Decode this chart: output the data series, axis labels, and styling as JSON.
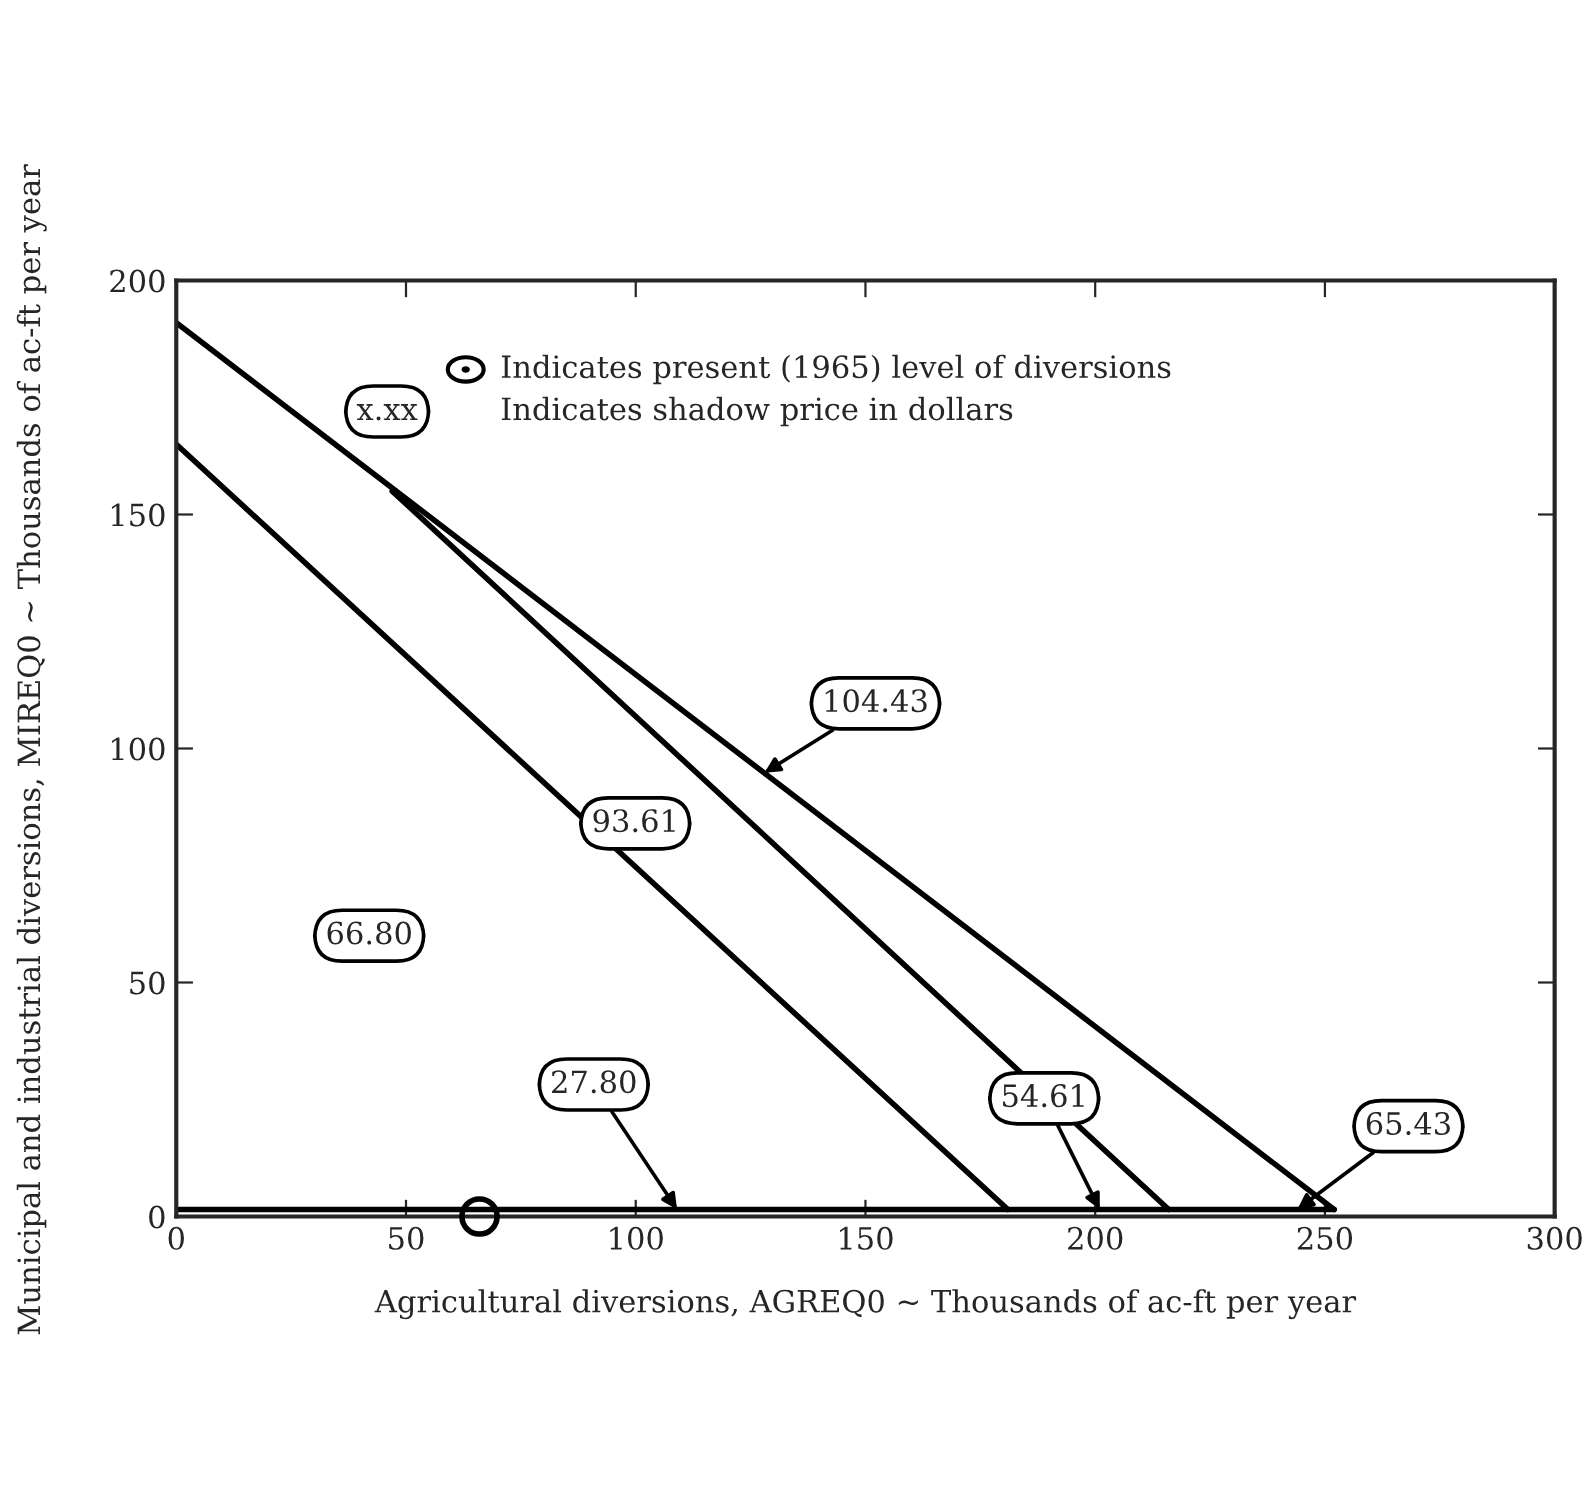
{
  "chart_data": {
    "type": "line",
    "xlabel": "Agricultural diversions, AGREQ0 ~ Thousands of ac-ft per year",
    "ylabel": "Municipal and industrial diversions, MIREQ0 ~ Thousands of ac-ft per year",
    "xlim": [
      0,
      300
    ],
    "xticks": [
      0,
      50,
      100,
      150,
      200,
      250,
      300
    ],
    "ylim": [
      0,
      200
    ],
    "yticks": [
      0,
      50,
      100,
      150,
      200
    ],
    "grid": false,
    "legend": false,
    "marker": "none",
    "line_style": "solid",
    "series": [
      {
        "color": "#000000",
        "x": [
          0,
          181
        ],
        "values": [
          165,
          1.5
        ]
      },
      {
        "color": "#000000",
        "x": [
          0,
          252
        ],
        "values": [
          191,
          1.5
        ]
      },
      {
        "color": "#000000",
        "x": [
          47,
          216
        ],
        "values": [
          155,
          1.5
        ]
      },
      {
        "color": "#000000",
        "x": [
          0,
          252
        ],
        "values": [
          1.5,
          1.5
        ]
      },
      {
        "type": "scatter",
        "marker": "circle",
        "color": "#000000",
        "x": [
          66
        ],
        "values": [
          0
        ]
      }
    ],
    "annotations": [
      "Indicates present (1965) level of diversions",
      "x.xx",
      "Indicates shadow price in dollars",
      "66.80",
      "93.61",
      {
        "text": "104.43",
        "x": 128,
        "y": 94.8
      },
      {
        "text": "27.80",
        "x": 109,
        "y": 1.5
      },
      {
        "text": "54.61",
        "x": 201,
        "y": 1.5
      },
      {
        "text": "65.43",
        "x": 244,
        "y": 1.5
      }
    ]
  }
}
